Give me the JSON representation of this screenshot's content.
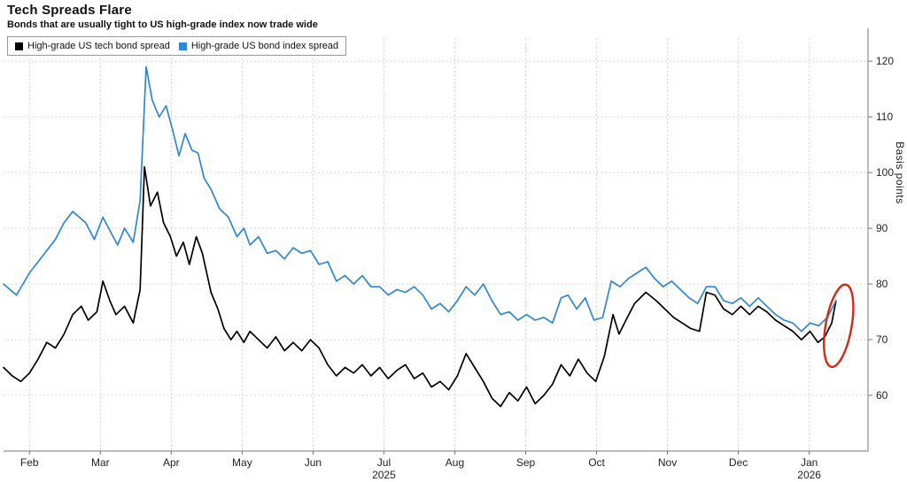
{
  "header": {
    "title": "Tech Spreads Flare",
    "subtitle": "Bonds that are usually tight to US high-grade index now trade wide"
  },
  "chart_data": {
    "type": "line",
    "title": "Tech Spreads Flare",
    "subtitle": "Bonds that are usually tight to US high-grade index now trade wide",
    "ylabel": "Basis points",
    "xlabel": "",
    "ylim": [
      50,
      124
    ],
    "yticks": [
      60,
      70,
      80,
      90,
      100,
      110,
      120
    ],
    "grid": "dotted both axes",
    "legend_position": "top-left inside, boxed",
    "xticks": [
      {
        "label": "Feb",
        "x": 3.0
      },
      {
        "label": "Mar",
        "x": 11.2
      },
      {
        "label": "Apr",
        "x": 19.4
      },
      {
        "label": "May",
        "x": 27.6
      },
      {
        "label": "Jun",
        "x": 35.8
      },
      {
        "label": "Jul",
        "x": 44.0
      },
      {
        "label": "Aug",
        "x": 52.2
      },
      {
        "label": "Sep",
        "x": 60.4
      },
      {
        "label": "Oct",
        "x": 68.6
      },
      {
        "label": "Nov",
        "x": 76.8
      },
      {
        "label": "Dec",
        "x": 85.0
      },
      {
        "label": "Jan",
        "x": 93.2
      }
    ],
    "year_labels": [
      {
        "label": "2025",
        "x": 44.0
      },
      {
        "label": "2026",
        "x": 93.2
      }
    ],
    "series": [
      {
        "name": "High-grade US tech bond spread",
        "color": "#000000",
        "width": 1.7,
        "points": [
          [
            0,
            65
          ],
          [
            1,
            63.5
          ],
          [
            2,
            62.5
          ],
          [
            3,
            64
          ],
          [
            4,
            66.5
          ],
          [
            5,
            69.5
          ],
          [
            6,
            68.5
          ],
          [
            7,
            71
          ],
          [
            8,
            74.5
          ],
          [
            9,
            76
          ],
          [
            9.8,
            73.5
          ],
          [
            10.8,
            75
          ],
          [
            11.5,
            80.5
          ],
          [
            12.3,
            77
          ],
          [
            13,
            74.5
          ],
          [
            14,
            76
          ],
          [
            15,
            73
          ],
          [
            15.8,
            79
          ],
          [
            16.3,
            101
          ],
          [
            17,
            94
          ],
          [
            17.8,
            96.5
          ],
          [
            18.5,
            91
          ],
          [
            19.3,
            88.5
          ],
          [
            20,
            85
          ],
          [
            20.8,
            87.5
          ],
          [
            21.5,
            83.5
          ],
          [
            22.3,
            88.5
          ],
          [
            23,
            85.5
          ],
          [
            24,
            78.5
          ],
          [
            24.8,
            75.5
          ],
          [
            25.5,
            72
          ],
          [
            26.3,
            70
          ],
          [
            27,
            71.5
          ],
          [
            27.8,
            69.5
          ],
          [
            28.5,
            71.5
          ],
          [
            29.5,
            70
          ],
          [
            30.5,
            68.5
          ],
          [
            31.5,
            70.5
          ],
          [
            32.5,
            68
          ],
          [
            33.5,
            69.5
          ],
          [
            34.5,
            68
          ],
          [
            35.5,
            70
          ],
          [
            36.5,
            68.5
          ],
          [
            37.5,
            65.5
          ],
          [
            38.5,
            63.5
          ],
          [
            39.5,
            65
          ],
          [
            40.5,
            64
          ],
          [
            41.5,
            65.5
          ],
          [
            42.5,
            63.5
          ],
          [
            43.5,
            65
          ],
          [
            44.5,
            63
          ],
          [
            45.5,
            64.5
          ],
          [
            46.5,
            65.5
          ],
          [
            47.5,
            63
          ],
          [
            48.5,
            64
          ],
          [
            49.5,
            61.5
          ],
          [
            50.5,
            62.5
          ],
          [
            51.5,
            61
          ],
          [
            52.5,
            63.5
          ],
          [
            53.5,
            67.5
          ],
          [
            54.5,
            65
          ],
          [
            55.5,
            62.5
          ],
          [
            56.5,
            59.5
          ],
          [
            57.5,
            58
          ],
          [
            58.5,
            60.5
          ],
          [
            59.5,
            59
          ],
          [
            60.5,
            61.5
          ],
          [
            61.5,
            58.5
          ],
          [
            62.5,
            60
          ],
          [
            63.5,
            62
          ],
          [
            64.5,
            65.5
          ],
          [
            65.5,
            63.5
          ],
          [
            66.5,
            66.5
          ],
          [
            67.5,
            64
          ],
          [
            68.5,
            62.5
          ],
          [
            69.5,
            67
          ],
          [
            70.5,
            74.5
          ],
          [
            71.2,
            71
          ],
          [
            72,
            73.5
          ],
          [
            73,
            76.5
          ],
          [
            74.3,
            78.5
          ],
          [
            75.5,
            77
          ],
          [
            76.5,
            75.5
          ],
          [
            77.5,
            74
          ],
          [
            78.5,
            73
          ],
          [
            79.5,
            72
          ],
          [
            80.5,
            71.5
          ],
          [
            81.3,
            78.5
          ],
          [
            82.3,
            78
          ],
          [
            83.3,
            75.5
          ],
          [
            84.3,
            74.5
          ],
          [
            85.3,
            76
          ],
          [
            86.3,
            74.5
          ],
          [
            87.3,
            76
          ],
          [
            88.3,
            75
          ],
          [
            89.3,
            73.5
          ],
          [
            90.3,
            72.5
          ],
          [
            91.3,
            71.5
          ],
          [
            92.3,
            70
          ],
          [
            93.3,
            71.5
          ],
          [
            94.2,
            69.5
          ],
          [
            95,
            70.5
          ],
          [
            95.8,
            73
          ],
          [
            96.3,
            77
          ]
        ]
      },
      {
        "name": "High-grade US bond index spread",
        "color": "#2f86d5",
        "width": 1.7,
        "points": [
          [
            0,
            80
          ],
          [
            1.5,
            78
          ],
          [
            3,
            82
          ],
          [
            4.5,
            85
          ],
          [
            6,
            88
          ],
          [
            7,
            91
          ],
          [
            8,
            93
          ],
          [
            9.5,
            91
          ],
          [
            10.5,
            88
          ],
          [
            11.5,
            92
          ],
          [
            12.5,
            89
          ],
          [
            13.2,
            87
          ],
          [
            14,
            90
          ],
          [
            15,
            87.5
          ],
          [
            15.8,
            95
          ],
          [
            16.5,
            119
          ],
          [
            17.2,
            113
          ],
          [
            18,
            110
          ],
          [
            18.8,
            112
          ],
          [
            19.5,
            108
          ],
          [
            20.3,
            103
          ],
          [
            21,
            107
          ],
          [
            21.8,
            104
          ],
          [
            22.5,
            103.5
          ],
          [
            23.2,
            99
          ],
          [
            24,
            97
          ],
          [
            25,
            93.5
          ],
          [
            26,
            92
          ],
          [
            27,
            88.5
          ],
          [
            27.8,
            90
          ],
          [
            28.5,
            87
          ],
          [
            29.5,
            88.5
          ],
          [
            30.5,
            85.5
          ],
          [
            31.5,
            86
          ],
          [
            32.5,
            84.5
          ],
          [
            33.5,
            86.5
          ],
          [
            34.5,
            85.5
          ],
          [
            35.5,
            86
          ],
          [
            36.5,
            83.5
          ],
          [
            37.5,
            84
          ],
          [
            38.5,
            80.5
          ],
          [
            39.5,
            81.5
          ],
          [
            40.5,
            80
          ],
          [
            41.5,
            81.5
          ],
          [
            42.5,
            79.5
          ],
          [
            43.5,
            79.5
          ],
          [
            44.5,
            78
          ],
          [
            45.5,
            79
          ],
          [
            46.5,
            78.5
          ],
          [
            47.5,
            79.5
          ],
          [
            48.5,
            78
          ],
          [
            49.5,
            75.5
          ],
          [
            50.5,
            76.5
          ],
          [
            51.5,
            75
          ],
          [
            52.5,
            77
          ],
          [
            53.5,
            79.5
          ],
          [
            54.5,
            78
          ],
          [
            55.5,
            80
          ],
          [
            56.5,
            77
          ],
          [
            57.5,
            74.5
          ],
          [
            58.5,
            75
          ],
          [
            59.5,
            73.5
          ],
          [
            60.5,
            74.5
          ],
          [
            61.5,
            73.5
          ],
          [
            62.5,
            74
          ],
          [
            63.5,
            73
          ],
          [
            64.5,
            77.5
          ],
          [
            65.3,
            78
          ],
          [
            66.3,
            75.5
          ],
          [
            67.3,
            77.5
          ],
          [
            68.3,
            73.5
          ],
          [
            69.3,
            74
          ],
          [
            70.3,
            80.5
          ],
          [
            71.3,
            79.5
          ],
          [
            72.3,
            81
          ],
          [
            73.3,
            82
          ],
          [
            74.3,
            83
          ],
          [
            75.3,
            81
          ],
          [
            76.3,
            79.5
          ],
          [
            77.3,
            80.5
          ],
          [
            78.3,
            79
          ],
          [
            79.3,
            77.5
          ],
          [
            80.3,
            76.5
          ],
          [
            81.3,
            79.5
          ],
          [
            82.3,
            79.5
          ],
          [
            83.3,
            77
          ],
          [
            84.3,
            76.5
          ],
          [
            85.3,
            77.5
          ],
          [
            86.3,
            76
          ],
          [
            87.3,
            77.5
          ],
          [
            88.3,
            76
          ],
          [
            89.3,
            74.5
          ],
          [
            90.3,
            73.5
          ],
          [
            91.3,
            73
          ],
          [
            92.3,
            71.5
          ],
          [
            93.3,
            73
          ],
          [
            94.3,
            72.5
          ],
          [
            95.3,
            74
          ],
          [
            96.3,
            77
          ]
        ]
      }
    ],
    "annotation": {
      "type": "ellipse",
      "x": 96.6,
      "value": 72.5,
      "rx_pct": 1.5,
      "ry_bps": 7.5,
      "rotate": 10,
      "color": "#d62718",
      "meaning": "highlights recent widening uptick in both spreads"
    }
  }
}
